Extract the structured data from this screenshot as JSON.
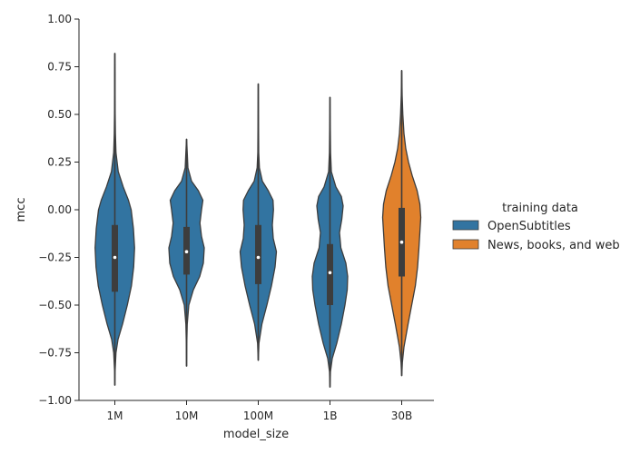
{
  "chart_data": {
    "type": "violin",
    "xlabel": "model_size",
    "ylabel": "mcc",
    "ylim": [
      -1.0,
      1.0
    ],
    "yticks": [
      1.0,
      0.75,
      0.5,
      0.25,
      0.0,
      -0.25,
      -0.5,
      -0.75,
      -1.0
    ],
    "ytick_labels": [
      "1.00",
      "0.75",
      "0.50",
      "0.25",
      "0.00",
      "−0.25",
      "−0.50",
      "−0.75",
      "−1.00"
    ],
    "categories": [
      "1M",
      "10M",
      "100M",
      "1B",
      "30B"
    ],
    "grid": false,
    "legend": {
      "title": "training data",
      "placement": "center-right",
      "entries": [
        {
          "label": "OpenSubtitles",
          "color": "#3274a1"
        },
        {
          "label": "News, books, and web",
          "color": "#e1812c"
        }
      ]
    },
    "violins": [
      {
        "category": "1M",
        "series": "OpenSubtitles",
        "min": -0.92,
        "max": 0.82,
        "q1": -0.43,
        "median": -0.25,
        "q3": -0.08,
        "density": [
          [
            -0.92,
            0.003
          ],
          [
            -0.85,
            0.01
          ],
          [
            -0.75,
            0.05
          ],
          [
            -0.68,
            0.14
          ],
          [
            -0.6,
            0.34
          ],
          [
            -0.5,
            0.55
          ],
          [
            -0.4,
            0.73
          ],
          [
            -0.3,
            0.83
          ],
          [
            -0.2,
            0.87
          ],
          [
            -0.1,
            0.82
          ],
          [
            0.0,
            0.72
          ],
          [
            0.05,
            0.6
          ],
          [
            0.12,
            0.37
          ],
          [
            0.2,
            0.15
          ],
          [
            0.3,
            0.05
          ],
          [
            0.4,
            0.025
          ],
          [
            0.5,
            0.015
          ],
          [
            0.6,
            0.01
          ],
          [
            0.7,
            0.01
          ],
          [
            0.82,
            0.003
          ]
        ]
      },
      {
        "category": "10M",
        "series": "OpenSubtitles",
        "min": -0.82,
        "max": 0.37,
        "q1": -0.34,
        "median": -0.22,
        "q3": -0.09,
        "density": [
          [
            -0.82,
            0.003
          ],
          [
            -0.7,
            0.01
          ],
          [
            -0.6,
            0.03
          ],
          [
            -0.5,
            0.1
          ],
          [
            -0.42,
            0.3
          ],
          [
            -0.35,
            0.58
          ],
          [
            -0.28,
            0.74
          ],
          [
            -0.2,
            0.78
          ],
          [
            -0.14,
            0.66
          ],
          [
            -0.07,
            0.59
          ],
          [
            0.0,
            0.66
          ],
          [
            0.05,
            0.72
          ],
          [
            0.1,
            0.52
          ],
          [
            0.15,
            0.22
          ],
          [
            0.22,
            0.06
          ],
          [
            0.3,
            0.03
          ],
          [
            0.37,
            0.003
          ]
        ]
      },
      {
        "category": "100M",
        "series": "OpenSubtitles",
        "min": -0.79,
        "max": 0.66,
        "q1": -0.39,
        "median": -0.25,
        "q3": -0.08,
        "density": [
          [
            -0.79,
            0.003
          ],
          [
            -0.7,
            0.03
          ],
          [
            -0.6,
            0.16
          ],
          [
            -0.5,
            0.38
          ],
          [
            -0.4,
            0.58
          ],
          [
            -0.3,
            0.74
          ],
          [
            -0.22,
            0.8
          ],
          [
            -0.15,
            0.66
          ],
          [
            -0.08,
            0.62
          ],
          [
            0.0,
            0.67
          ],
          [
            0.05,
            0.65
          ],
          [
            0.1,
            0.44
          ],
          [
            0.15,
            0.18
          ],
          [
            0.22,
            0.05
          ],
          [
            0.3,
            0.02
          ],
          [
            0.45,
            0.012
          ],
          [
            0.55,
            0.008
          ],
          [
            0.66,
            0.003
          ]
        ]
      },
      {
        "category": "1B",
        "series": "OpenSubtitles",
        "min": -0.93,
        "max": 0.59,
        "q1": -0.5,
        "median": -0.33,
        "q3": -0.18,
        "density": [
          [
            -0.93,
            0.003
          ],
          [
            -0.85,
            0.02
          ],
          [
            -0.78,
            0.1
          ],
          [
            -0.7,
            0.3
          ],
          [
            -0.6,
            0.5
          ],
          [
            -0.5,
            0.66
          ],
          [
            -0.42,
            0.76
          ],
          [
            -0.35,
            0.78
          ],
          [
            -0.28,
            0.7
          ],
          [
            -0.2,
            0.48
          ],
          [
            -0.12,
            0.42
          ],
          [
            -0.05,
            0.52
          ],
          [
            0.02,
            0.58
          ],
          [
            0.07,
            0.5
          ],
          [
            0.12,
            0.26
          ],
          [
            0.2,
            0.06
          ],
          [
            0.3,
            0.025
          ],
          [
            0.45,
            0.012
          ],
          [
            0.59,
            0.003
          ]
        ]
      },
      {
        "category": "30B",
        "series": "News, books, and web",
        "min": -0.87,
        "max": 0.73,
        "q1": -0.35,
        "median": -0.17,
        "q3": 0.01,
        "density": [
          [
            -0.87,
            0.003
          ],
          [
            -0.8,
            0.03
          ],
          [
            -0.72,
            0.1
          ],
          [
            -0.6,
            0.28
          ],
          [
            -0.5,
            0.44
          ],
          [
            -0.4,
            0.6
          ],
          [
            -0.3,
            0.7
          ],
          [
            -0.2,
            0.76
          ],
          [
            -0.12,
            0.8
          ],
          [
            -0.04,
            0.84
          ],
          [
            0.03,
            0.8
          ],
          [
            0.1,
            0.68
          ],
          [
            0.18,
            0.46
          ],
          [
            0.25,
            0.3
          ],
          [
            0.32,
            0.18
          ],
          [
            0.4,
            0.1
          ],
          [
            0.5,
            0.05
          ],
          [
            0.6,
            0.02
          ],
          [
            0.73,
            0.003
          ]
        ]
      }
    ]
  }
}
